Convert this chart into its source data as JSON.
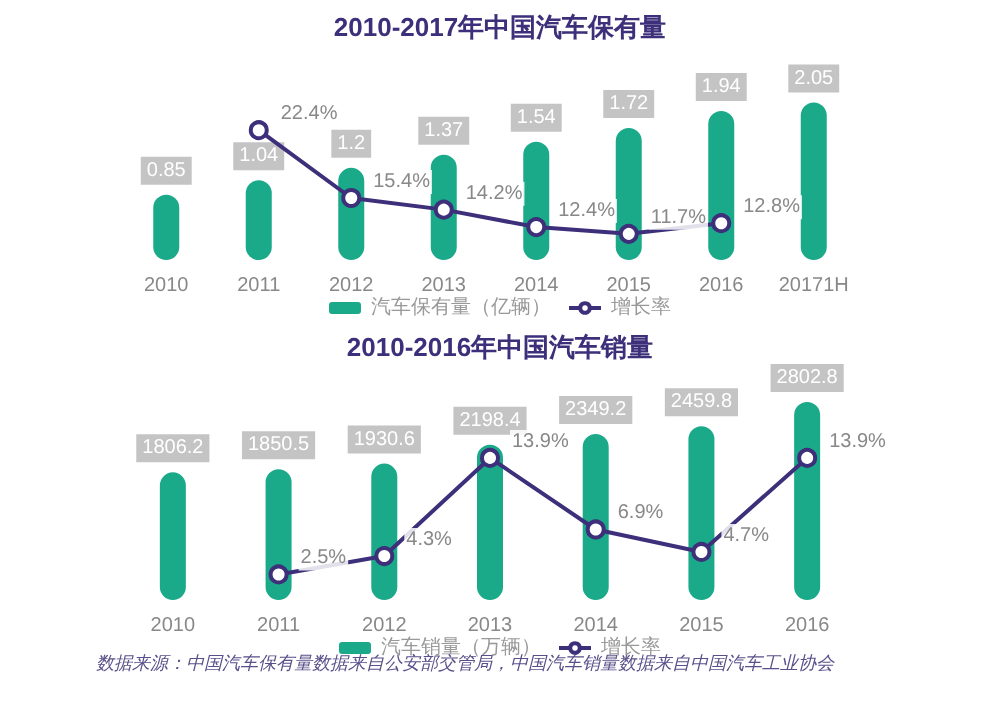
{
  "chart_data": [
    {
      "type": "bar",
      "title": "2010-2017年中国汽车保有量",
      "categories": [
        "2010",
        "2011",
        "2012",
        "2013",
        "2014",
        "2015",
        "2016",
        "20171H"
      ],
      "series": [
        {
          "name": "汽车保有量（亿辆）",
          "color": "#1aaa8a",
          "values": [
            0.85,
            1.04,
            1.2,
            1.37,
            1.54,
            1.72,
            1.94,
            2.05
          ]
        },
        {
          "name": "增长率",
          "type": "line",
          "axis": "y2",
          "color": "#3d2f7a",
          "values": [
            null,
            22.4,
            15.4,
            14.2,
            12.4,
            11.7,
            12.8,
            null
          ],
          "value_labels": [
            null,
            "22.4%",
            "15.4%",
            "14.2%",
            "12.4%",
            "11.7%",
            "12.8%",
            null
          ]
        }
      ],
      "data_labels": true,
      "marker": "circle",
      "legend": "bottom"
    },
    {
      "type": "bar",
      "title": "2010-2016年中国汽车销量",
      "categories": [
        "2010",
        "2011",
        "2012",
        "2013",
        "2014",
        "2015",
        "2016"
      ],
      "series": [
        {
          "name": "汽车销量（万辆）",
          "color": "#1aaa8a",
          "values": [
            1806.2,
            1850.5,
            1930.6,
            2198.4,
            2349.2,
            2459.8,
            2802.8
          ]
        },
        {
          "name": "增长率",
          "type": "line",
          "axis": "y2",
          "color": "#3d2f7a",
          "values": [
            null,
            2.5,
            4.3,
            13.9,
            6.9,
            4.7,
            13.9
          ],
          "value_labels": [
            null,
            "2.5%",
            "4.3%",
            "13.9%",
            "6.9%",
            "4.7%",
            "13.9%"
          ]
        }
      ],
      "data_labels": true,
      "marker": "circle",
      "legend": "bottom",
      "annotations": [
        "数据来源：中国汽车保有量数据来自公安部交管局，中国汽车销量数据来自中国汽车工业协会"
      ]
    }
  ]
}
